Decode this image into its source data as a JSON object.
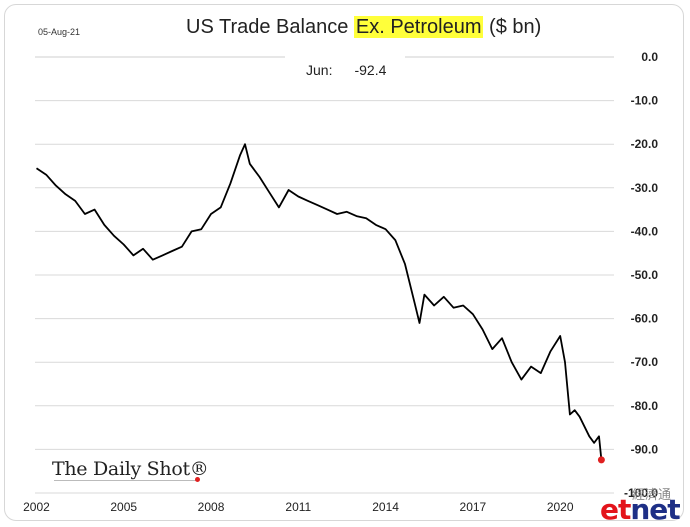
{
  "header": {
    "date": "05-Aug-21",
    "title_before": "US Trade Balance ",
    "title_highlight": "Ex. Petroleum",
    "title_after": " ($ bn)",
    "latest_label": "Jun:",
    "latest_value": "-92.4"
  },
  "brand": "The Daily Shot®",
  "watermark": {
    "cjk": "經濟通",
    "e_part": "et",
    "net_part": "net"
  },
  "colors": {
    "line": "#000000",
    "grid": "#d9d9d9",
    "marker": "#e02020",
    "highlight": "#ffff3a"
  },
  "chart_data": {
    "type": "line",
    "title": "US Trade Balance Ex. Petroleum ($ bn)",
    "ylabel": "",
    "xlabel": "",
    "ylim": [
      -100,
      0
    ],
    "y_ticks": [
      "0.0",
      "-10.0",
      "-20.0",
      "-30.0",
      "-40.0",
      "-50.0",
      "-60.0",
      "-70.0",
      "-80.0",
      "-90.0",
      "-100.0"
    ],
    "x_ticks": [
      "2002",
      "2005",
      "2008",
      "2011",
      "2014",
      "2017",
      "2020"
    ],
    "grid": true,
    "x": [
      "2002-01",
      "2002-05",
      "2002-09",
      "2003-01",
      "2003-05",
      "2003-09",
      "2004-01",
      "2004-05",
      "2004-09",
      "2005-01",
      "2005-05",
      "2005-09",
      "2006-01",
      "2006-05",
      "2006-09",
      "2007-01",
      "2007-05",
      "2007-09",
      "2008-01",
      "2008-05",
      "2008-09",
      "2009-01",
      "2009-03",
      "2009-05",
      "2009-09",
      "2010-01",
      "2010-05",
      "2010-09",
      "2011-01",
      "2011-05",
      "2011-09",
      "2012-01",
      "2012-05",
      "2012-09",
      "2013-01",
      "2013-05",
      "2013-09",
      "2014-01",
      "2014-05",
      "2014-09",
      "2015-01",
      "2015-03",
      "2015-05",
      "2015-09",
      "2016-01",
      "2016-05",
      "2016-09",
      "2017-01",
      "2017-05",
      "2017-09",
      "2018-01",
      "2018-05",
      "2018-09",
      "2019-01",
      "2019-05",
      "2019-09",
      "2020-01",
      "2020-03",
      "2020-05",
      "2020-07",
      "2020-09",
      "2021-01",
      "2021-03",
      "2021-05",
      "2021-06"
    ],
    "series": [
      {
        "values": [
          -25.5,
          -27.0,
          -29.5,
          -31.5,
          -33.0,
          -36.0,
          -35.0,
          -38.5,
          -41.0,
          -43.0,
          -45.5,
          -44.0,
          -46.5,
          -45.5,
          -44.5,
          -43.5,
          -40.0,
          -39.5,
          -36.0,
          -34.5,
          -29.0,
          -22.5,
          -20.0,
          -24.5,
          -27.5,
          -31.0,
          -34.5,
          -30.5,
          -32.0,
          -33.0,
          -34.0,
          -35.0,
          -36.0,
          -35.5,
          -36.5,
          -37.0,
          -38.5,
          -39.5,
          -42.0,
          -47.5,
          -56.5,
          -61.0,
          -54.5,
          -57.0,
          -55.0,
          -57.5,
          -57.0,
          -59.0,
          -62.5,
          -67.0,
          -64.5,
          -70.0,
          -74.0,
          -71.0,
          -72.5,
          -67.5,
          -64.0,
          -70.0,
          -82.0,
          -81.0,
          -82.5,
          -87.0,
          -88.5,
          -87.0,
          -92.4
        ]
      }
    ],
    "latest": {
      "label": "Jun",
      "value": -92.4
    }
  }
}
